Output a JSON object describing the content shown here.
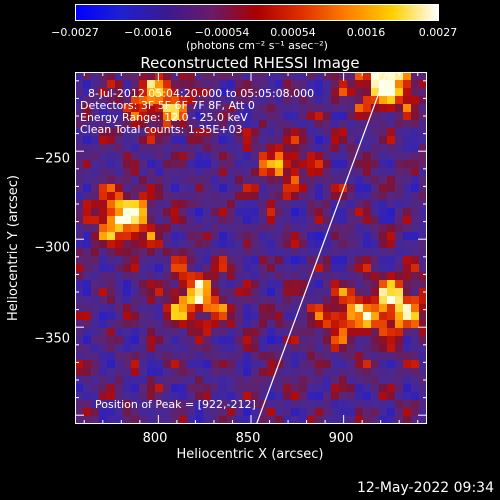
{
  "colorbar": {
    "gradient": [
      "#0000ff",
      "#2020d0",
      "#3a1a90",
      "#6a1a6a",
      "#aa0000",
      "#e03000",
      "#ff8000",
      "#ffd000",
      "#ffffff"
    ],
    "ticks": [
      "−0.0027",
      "−0.0016",
      "−0.00054",
      "0.00054",
      "0.0016",
      "0.0027"
    ],
    "unit_label": "(photons cm⁻² s⁻¹ asec⁻²)"
  },
  "chart_data": {
    "type": "heatmap",
    "title": "Reconstructed RHESSI Image",
    "xlabel": "Heliocentric X (arcsec)",
    "ylabel": "Heliocentric Y (arcsec)",
    "xlim": [
      755,
      945
    ],
    "ylim": [
      -405,
      -205
    ],
    "xticks": [
      800,
      850,
      900
    ],
    "yticks": [
      -250,
      -300,
      -350
    ],
    "ytick_labels": [
      "−250",
      "−300",
      "−350"
    ],
    "value_range": [
      -0.0027,
      0.0027
    ],
    "peak": {
      "x": 922,
      "y": -212
    },
    "limb_line": {
      "x1": 925,
      "y1": -200,
      "x2": 853,
      "y2": -405
    },
    "hotspots": [
      {
        "x": 922,
        "y": -212,
        "v": 1.0
      },
      {
        "x": 782,
        "y": -288,
        "v": 0.95
      },
      {
        "x": 928,
        "y": -338,
        "v": 0.85
      },
      {
        "x": 820,
        "y": -335,
        "v": 0.8
      },
      {
        "x": 800,
        "y": -222,
        "v": 0.75
      },
      {
        "x": 900,
        "y": -345,
        "v": 0.6
      },
      {
        "x": 868,
        "y": -258,
        "v": 0.5
      }
    ]
  },
  "info": {
    "line1": "8-Jul-2012 05:04:20.000 to 05:05:08.000",
    "line2": "Detectors: 3F 5F 6F 7F 8F, Att 0",
    "line3": "Energy Range: 12.0 - 25.0 keV",
    "line4": "Clean    Total counts: 1.35E+03",
    "peak_text": "Position of Peak = [922,-212]"
  },
  "timestamp": "12-May-2022 09:34"
}
